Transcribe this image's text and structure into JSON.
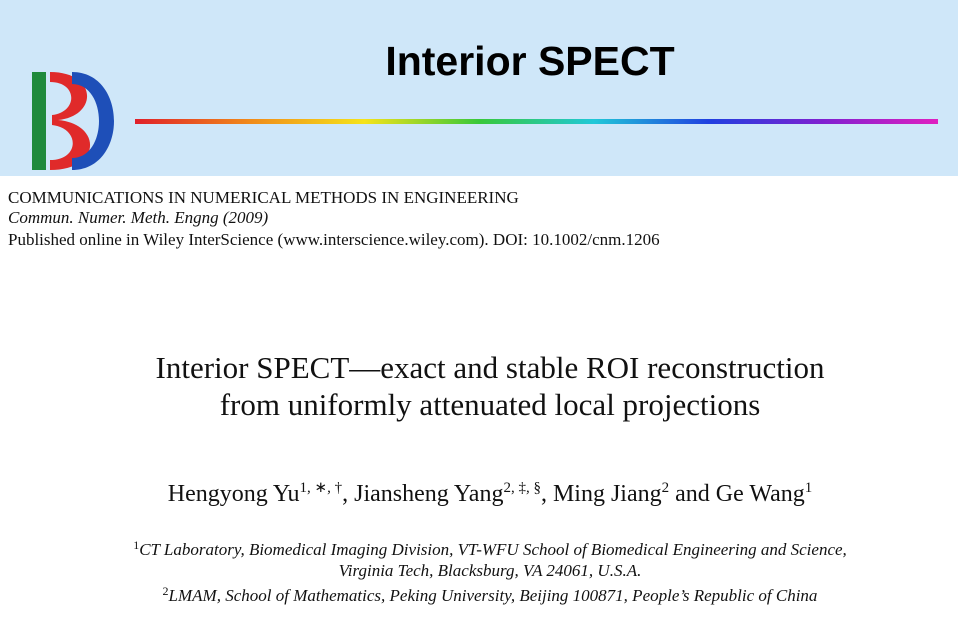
{
  "header": {
    "title": "Interior SPECT"
  },
  "journal": {
    "name": "COMMUNICATIONS IN NUMERICAL METHODS IN ENGINEERING",
    "citation": "Commun. Numer. Meth. Engng (2009)",
    "published": "Published online in Wiley InterScience (www.interscience.wiley.com). DOI: 10.1002/cnm.1206"
  },
  "paper": {
    "title": [
      "Interior SPECT—exact and stable ROI reconstruction",
      "from uniformly attenuated local projections"
    ],
    "authors": [
      {
        "name": "Hengyong Yu",
        "marks": "1, ∗, †",
        "suffix": ", "
      },
      {
        "name": "Jiansheng Yang",
        "marks": "2, ‡, §",
        "suffix": ", "
      },
      {
        "name": "Ming Jiang",
        "marks": "2",
        "suffix": " and "
      },
      {
        "name": "Ge Wang",
        "marks": "1"
      }
    ],
    "affiliations": [
      {
        "mark": "1",
        "lines": [
          "CT Laboratory, Biomedical Imaging Division, VT-WFU School of Biomedical Engineering and Science,",
          "Virginia Tech, Blacksburg, VA 24061, U.S.A."
        ]
      },
      {
        "mark": "2",
        "lines": [
          "LMAM, School of Mathematics, Peking University, Beijing 100871, People’s Republic of China"
        ]
      }
    ]
  }
}
